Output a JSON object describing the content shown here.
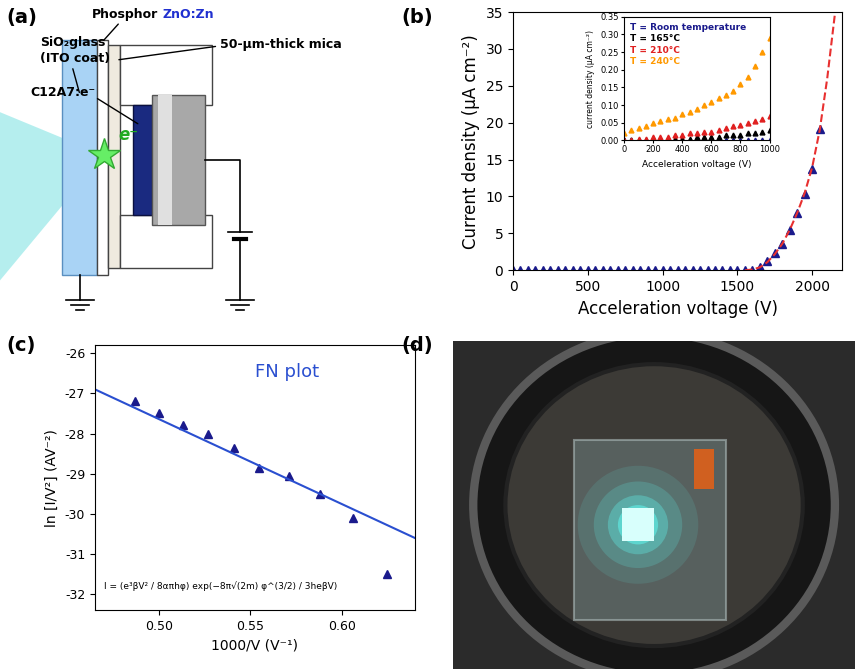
{
  "diagram": {
    "panel_label": "(a)",
    "labels": {
      "glass": "SiO₂glass",
      "glass_coat": "(ITO coat)",
      "phosphor": "Phosphor",
      "phosphor_material": "ZnO:Zn",
      "mica": "50-μm-thick mica",
      "emitter": "C12A7:e⁻",
      "electron": "e⁻"
    }
  },
  "chart_data": [
    {
      "type": "scatter",
      "panel_label": "(b)",
      "x_label": "Acceleration voltage (V)",
      "y_label": "Current density (μA cm⁻²)",
      "xlim": [
        0,
        2200
      ],
      "ylim": [
        0,
        35
      ],
      "xticks": [
        0,
        500,
        1000,
        1500,
        2000
      ],
      "yticks": [
        0,
        5,
        10,
        15,
        20,
        25,
        30,
        35
      ],
      "series": [
        {
          "color": "#1a1a8c",
          "marker": "triangle",
          "x": [
            0,
            50,
            100,
            150,
            200,
            250,
            300,
            350,
            400,
            450,
            500,
            550,
            600,
            650,
            700,
            750,
            800,
            850,
            900,
            950,
            1000,
            1050,
            1100,
            1150,
            1200,
            1250,
            1300,
            1350,
            1400,
            1450,
            1500,
            1550,
            1600,
            1650,
            1700,
            1750,
            1800,
            1850,
            1900,
            1950,
            2000,
            2050
          ],
          "values": [
            0,
            0,
            0,
            0,
            0,
            0,
            0,
            0,
            0,
            0,
            0,
            0,
            0,
            0,
            0,
            0,
            0,
            0,
            0,
            0,
            0,
            0,
            0,
            0,
            0,
            0,
            0,
            0,
            0,
            0,
            0,
            0,
            0,
            0.5,
            1.3,
            2.3,
            3.5,
            5.5,
            7.8,
            10.3,
            13.7,
            19.2
          ]
        },
        {
          "color": "#e83030",
          "line_style": "dashed",
          "x": [
            1550,
            1600,
            1650,
            1700,
            1750,
            1800,
            1850,
            1900,
            1950,
            2000,
            2050,
            2100,
            2150
          ],
          "values": [
            0,
            0.1,
            0.4,
            1.1,
            2.2,
            3.6,
            5.5,
            7.8,
            10.5,
            14,
            19,
            26,
            34.5
          ]
        }
      ]
    },
    {
      "type": "scatter",
      "legend": "upper left",
      "x_label": "Acceleration voltage (V)",
      "y_label": "current density (μA cm⁻²)",
      "xlim": [
        0,
        1000
      ],
      "ylim": [
        0,
        0.35
      ],
      "xticks": [
        0,
        200,
        400,
        600,
        800,
        1000
      ],
      "yticks": [
        {
          "value": 0,
          "label": "0.00"
        },
        {
          "value": 0.05,
          "label": "0.05"
        },
        {
          "value": 0.1,
          "label": "0.10"
        },
        {
          "value": 0.15,
          "label": "0.15"
        },
        {
          "value": 0.2,
          "label": "0.20"
        },
        {
          "value": 0.25,
          "label": "0.25"
        },
        {
          "value": 0.3,
          "label": "0.30"
        },
        {
          "value": 0.35,
          "label": "0.35"
        }
      ],
      "x": [
        0,
        50,
        100,
        150,
        200,
        250,
        300,
        350,
        400,
        450,
        500,
        550,
        600,
        650,
        700,
        750,
        800,
        850,
        900,
        950,
        1000
      ],
      "series": [
        {
          "name": "T = Room temperature",
          "color": "#1a1a8c",
          "marker": "triangle",
          "values": [
            0,
            0,
            0,
            0,
            0,
            0,
            0,
            0,
            0,
            0,
            0,
            0,
            0,
            0,
            0,
            0,
            0,
            0,
            0,
            0,
            0
          ]
        },
        {
          "name": "T = 165°C",
          "color": "#000000",
          "marker": "triangle",
          "values": [
            0,
            0,
            0,
            0,
            0,
            0,
            0.005,
            0.005,
            0.005,
            0.005,
            0.01,
            0.01,
            0.01,
            0.01,
            0.015,
            0.015,
            0.015,
            0.02,
            0.02,
            0.025,
            0.03
          ]
        },
        {
          "name": "T = 210°C",
          "color": "#e02020",
          "marker": "triangle",
          "values": [
            0,
            0,
            0.005,
            0.005,
            0.01,
            0.01,
            0.01,
            0.015,
            0.015,
            0.02,
            0.02,
            0.025,
            0.025,
            0.03,
            0.035,
            0.04,
            0.045,
            0.05,
            0.055,
            0.06,
            0.07
          ]
        },
        {
          "name": "T = 240°C",
          "color": "#ff9900",
          "marker": "triangle",
          "values": [
            0.02,
            0.03,
            0.035,
            0.04,
            0.05,
            0.055,
            0.06,
            0.065,
            0.075,
            0.08,
            0.09,
            0.1,
            0.11,
            0.12,
            0.13,
            0.14,
            0.16,
            0.18,
            0.21,
            0.25,
            0.29
          ]
        }
      ]
    },
    {
      "type": "scatter",
      "panel_label": "(c)",
      "x_label": "1000/V (V⁻¹)",
      "y_label": "ln [I/V²] (AV⁻²)",
      "xlim": [
        0.465,
        0.64
      ],
      "ylim": [
        -32.4,
        -25.8
      ],
      "xticks": [
        {
          "value": 0.5,
          "label": "0.50"
        },
        {
          "value": 0.55,
          "label": "0.55"
        },
        {
          "value": 0.6,
          "label": "0.60"
        }
      ],
      "yticks": [
        -32,
        -31,
        -30,
        -29,
        -28,
        -27,
        -26
      ],
      "annotations": [
        "FN plot",
        "I = (e³βV² / 8απhφ) exp(−8π√(2m) φ^(3/2) / 3heβV)"
      ],
      "series": [
        {
          "color": "#1a1a8c",
          "marker": "triangle",
          "x": [
            0.487,
            0.5,
            0.513,
            0.527,
            0.541,
            0.555,
            0.571,
            0.588,
            0.606,
            0.625
          ],
          "values": [
            -27.2,
            -27.5,
            -27.8,
            -28.0,
            -28.35,
            -28.85,
            -29.05,
            -29.5,
            -30.1,
            -31.5
          ]
        },
        {
          "color": "#2a4fd0",
          "line_style": "solid",
          "x": [
            0.465,
            0.64
          ],
          "values": [
            -26.9,
            -30.6
          ]
        }
      ]
    }
  ],
  "photo": {
    "panel_label": "(d)"
  }
}
